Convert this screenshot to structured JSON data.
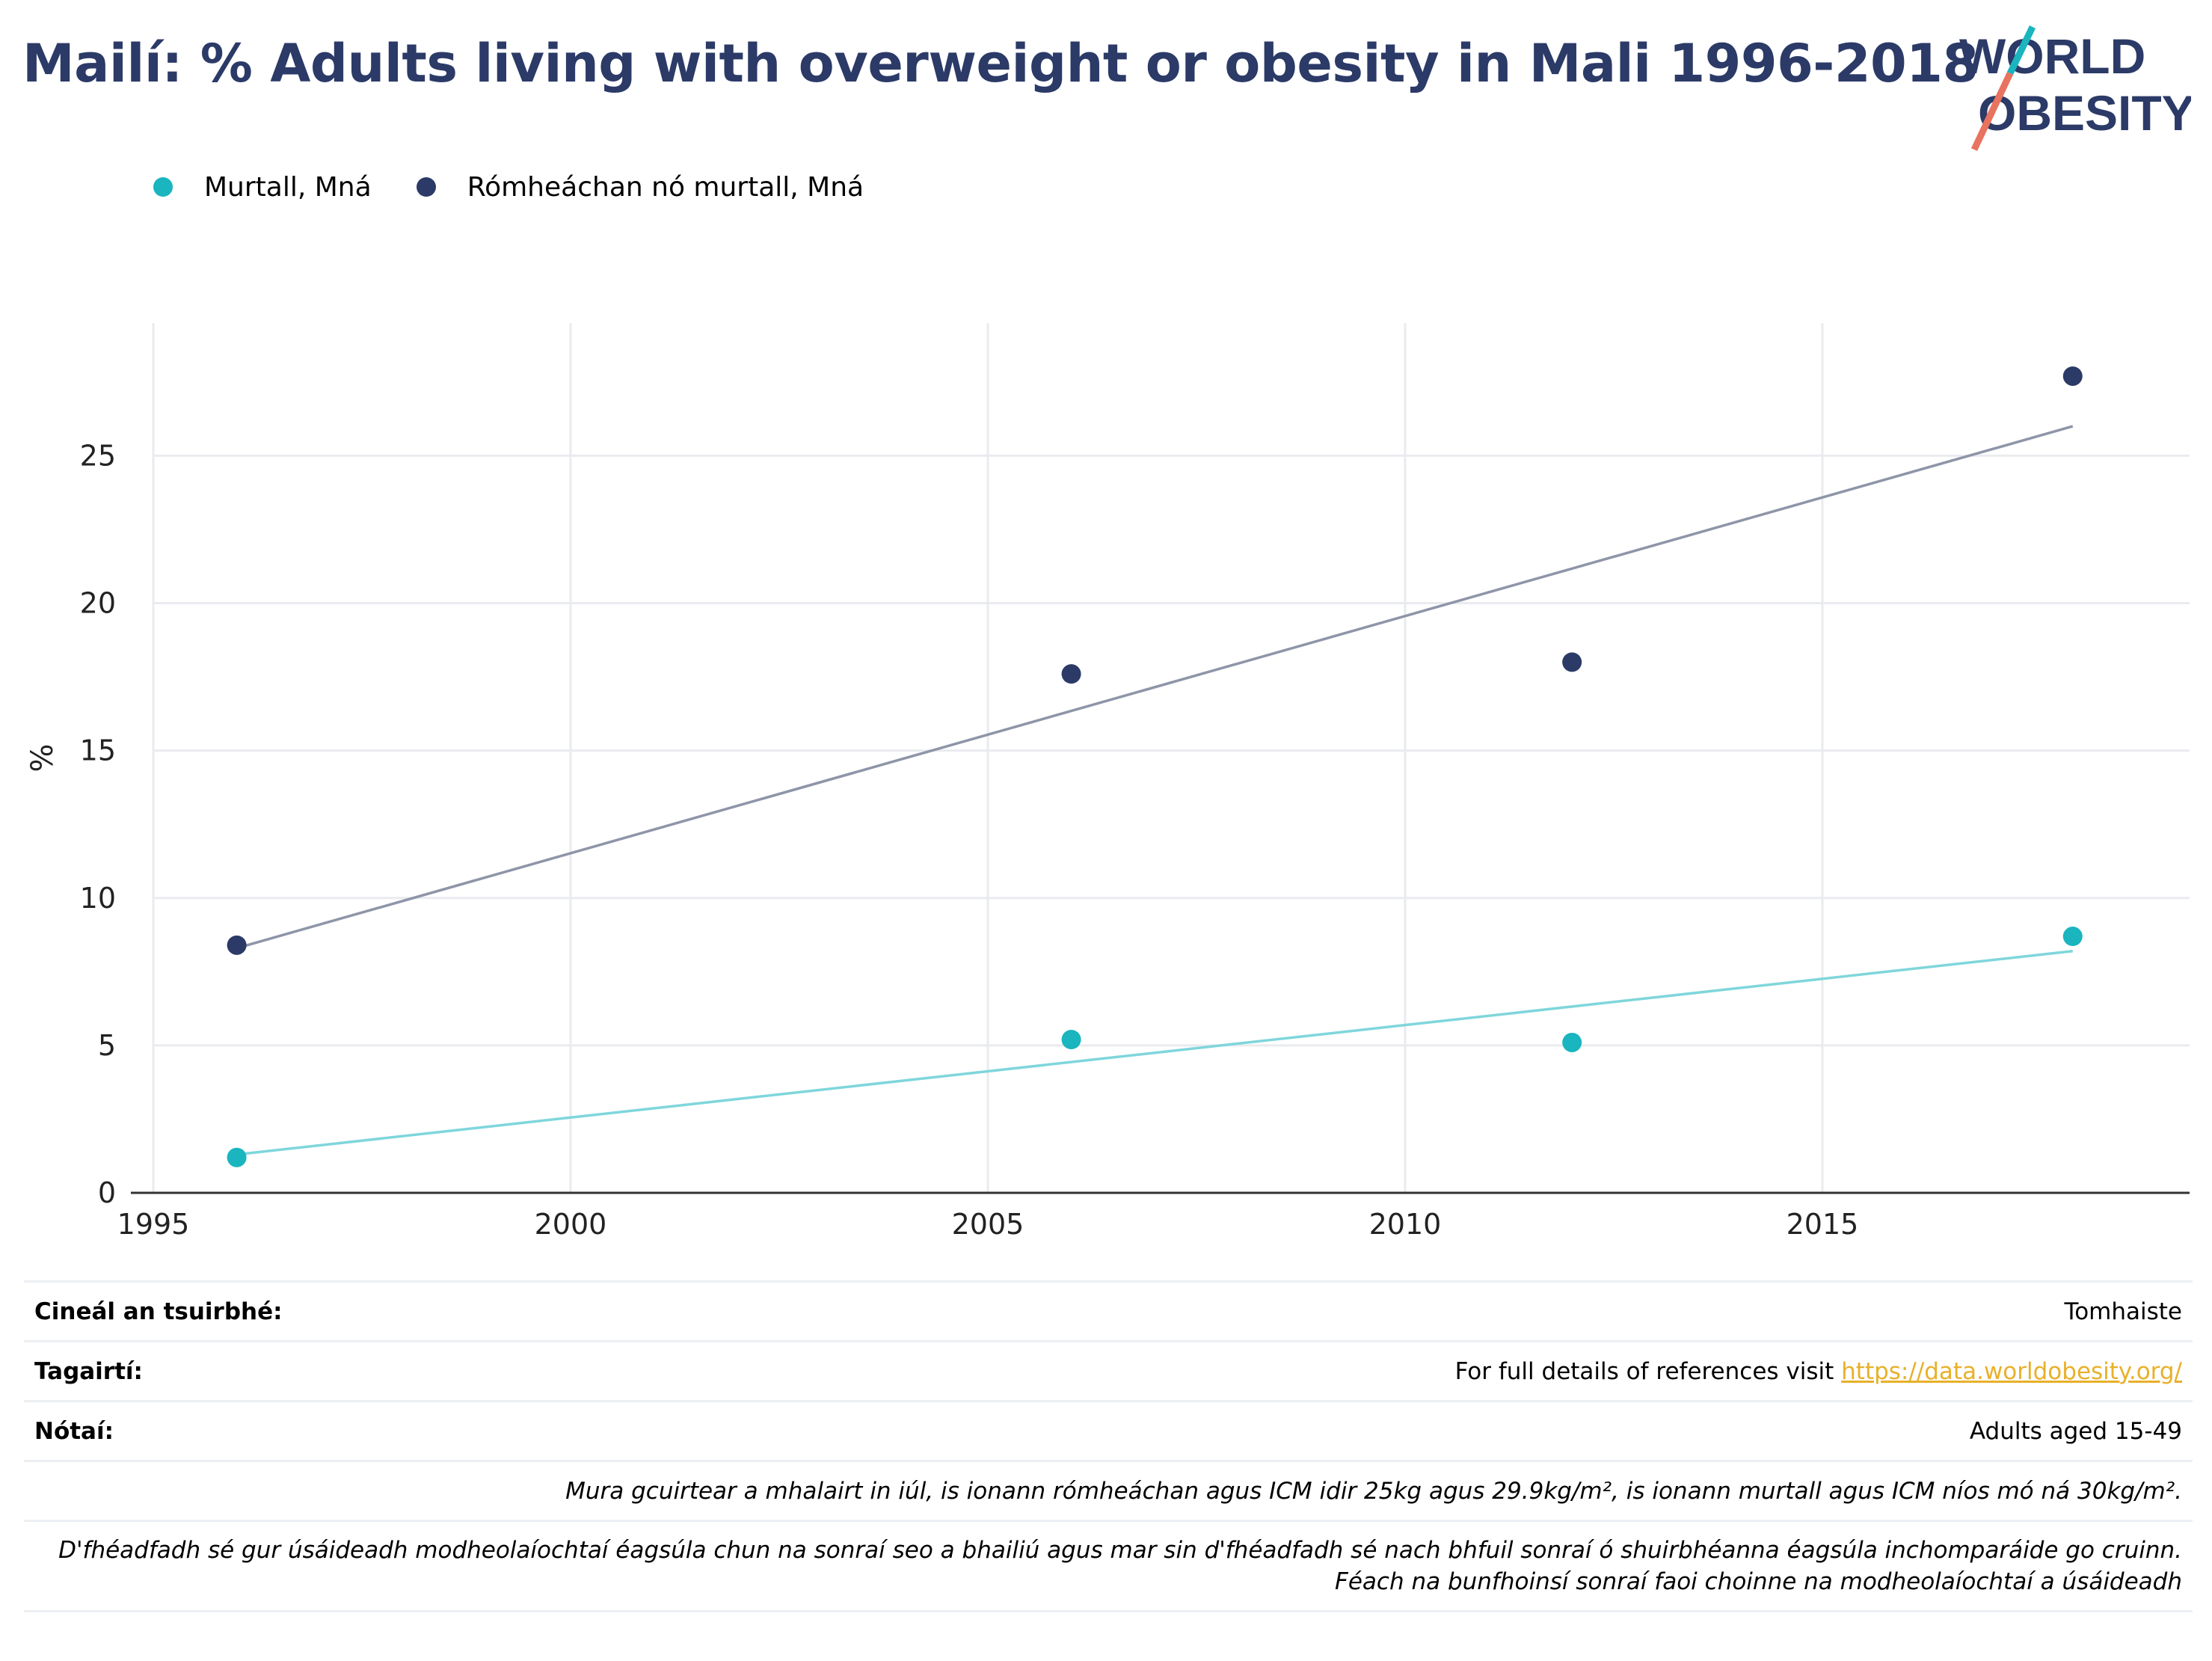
{
  "title": "Mailí: % Adults living with overweight or obesity in Mali 1996-2018",
  "logo": {
    "line1": "WORLD",
    "line2": "OBESITY"
  },
  "colors": {
    "title": "#2b3a67",
    "obesity": "#1ab5bf",
    "overweight": "#2b3a67",
    "obesity_trend": "#7fd6db",
    "overweight_trend": "#8e95a8",
    "link": "#e8b02a"
  },
  "legend": [
    {
      "label": "Murtall, Mná",
      "color": "#1ab5bf"
    },
    {
      "label": "Rómheáchan nó murtall, Mná",
      "color": "#2b3a67"
    }
  ],
  "chart_data": {
    "type": "scatter",
    "ylabel": "%",
    "xlabel": "",
    "xlim": [
      1995,
      2019.4
    ],
    "ylim": [
      0,
      29.5
    ],
    "xticks": [
      1995,
      2000,
      2005,
      2010,
      2015
    ],
    "yticks": [
      0,
      5,
      10,
      15,
      20,
      25
    ],
    "grid": true,
    "legend_position": "top-left",
    "series": [
      {
        "name": "Murtall, Mná",
        "x": [
          1996,
          2006,
          2012,
          2018
        ],
        "y": [
          1.2,
          5.2,
          5.1,
          8.7
        ],
        "trend": {
          "x": [
            1996,
            2018
          ],
          "y": [
            1.3,
            8.2
          ]
        }
      },
      {
        "name": "Rómheáchan nó murtall, Mná",
        "x": [
          1996,
          2006,
          2012,
          2018
        ],
        "y": [
          8.4,
          17.6,
          18.0,
          27.7
        ],
        "trend": {
          "x": [
            1996,
            2018
          ],
          "y": [
            8.3,
            26.0
          ]
        }
      }
    ]
  },
  "info": {
    "survey_label": "Cineál an tsuirbhé:",
    "survey_value": "Tomhaiste",
    "refs_label": "Tagairtí:",
    "refs_text": "For full details of references visit ",
    "refs_link": "https://data.worldobesity.org/",
    "notes_label": "Nótaí:",
    "notes_value": "Adults aged 15-49",
    "note_bmi": "Mura gcuirtear a mhalairt in iúl, is ionann rómheáchan agus ICM idir 25kg agus 29.9kg/m², is ionann murtall agus ICM níos mó ná 30kg/m².",
    "note_methods_1": "D'fhéadfadh sé gur úsáideadh modheolaíochtaí éagsúla chun na sonraí seo a bhailiú agus mar sin d'fhéadfadh sé nach bhfuil sonraí ó shuirbhéanna éagsúla inchomparáide go cruinn.",
    "note_methods_2": "Féach na bunfhoinsí sonraí faoi choinne na modheolaíochtaí a úsáideadh"
  }
}
